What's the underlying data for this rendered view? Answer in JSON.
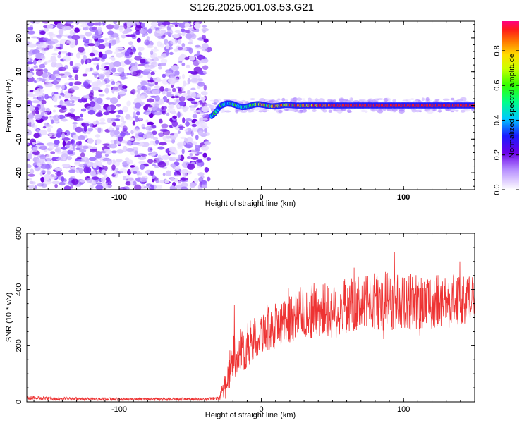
{
  "title": "S126.2026.001.03.53.G21",
  "chart_data": [
    {
      "type": "heatmap",
      "name": "spectrogram",
      "xlabel": "Height of straight line (km)",
      "ylabel": "Frequency (Hz)",
      "xlim": [
        -165,
        150
      ],
      "ylim": [
        -25,
        25
      ],
      "xticks": [
        -100,
        0,
        100
      ],
      "yticks": [
        -20,
        -10,
        0,
        10,
        20
      ],
      "colorbar": {
        "label": "Normalized spectral amplitude",
        "range": [
          0,
          0.97
        ],
        "ticks": [
          0.0,
          0.2,
          0.4,
          0.6,
          0.8
        ]
      },
      "features": {
        "noise_region_x": [
          -165,
          -37
        ],
        "signal_trace_x": [
          -35,
          150
        ],
        "signal_frequency_hz": 0
      }
    },
    {
      "type": "line",
      "name": "snr",
      "xlabel": "Height of straight line (km)",
      "ylabel": "SNR (10 * v/v)",
      "xlim": [
        -165,
        150
      ],
      "ylim": [
        0,
        600
      ],
      "xticks": [
        -100,
        0,
        100
      ],
      "yticks": [
        0,
        200,
        400,
        600
      ],
      "series_color": "#ee3333",
      "x": [
        -165,
        -150,
        -120,
        -90,
        -60,
        -40,
        -30,
        -25,
        -20,
        -10,
        0,
        10,
        20,
        30,
        40,
        50,
        60,
        70,
        80,
        90,
        100,
        110,
        120,
        130,
        140,
        150
      ],
      "y": [
        15,
        12,
        10,
        10,
        10,
        10,
        12,
        60,
        160,
        200,
        250,
        270,
        300,
        320,
        330,
        320,
        340,
        350,
        360,
        360,
        350,
        360,
        350,
        360,
        360,
        370
      ],
      "spread": [
        8,
        6,
        5,
        5,
        5,
        5,
        6,
        50,
        80,
        80,
        80,
        80,
        90,
        100,
        100,
        100,
        100,
        100,
        100,
        110,
        100,
        100,
        100,
        100,
        90,
        80
      ]
    }
  ]
}
